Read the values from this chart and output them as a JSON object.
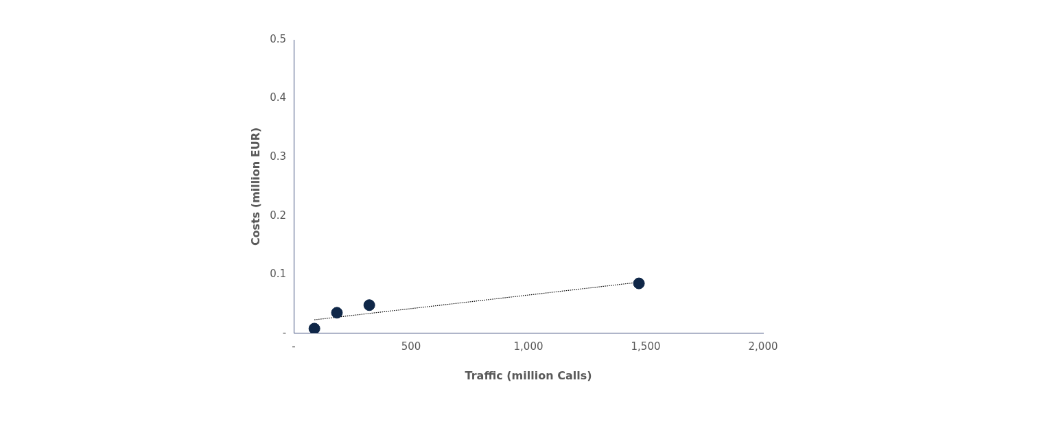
{
  "chart_data": {
    "type": "scatter",
    "xlabel": "Traffic (million Calls)",
    "ylabel": "Costs (million EUR)",
    "xlim": [
      0,
      2000
    ],
    "xticks": [
      {
        "value": 0,
        "label": "-"
      },
      {
        "value": 500,
        "label": "500"
      },
      {
        "value": 1000,
        "label": "1,000"
      },
      {
        "value": 1500,
        "label": "1,500"
      },
      {
        "value": 2000,
        "label": "2,000"
      }
    ],
    "ylim": [
      0,
      0.5
    ],
    "yticks": [
      {
        "value": 0,
        "label": "-"
      },
      0.1,
      0.2,
      0.3,
      0.4,
      0.5
    ],
    "grid": false,
    "legend": false,
    "series": [
      {
        "type": "scatter",
        "color": "#0f2748",
        "marker": "circle",
        "x": [
          88,
          184,
          322,
          1471
        ],
        "values": [
          0.008,
          0.035,
          0.048,
          0.085
        ]
      },
      {
        "type": "line",
        "color": "#000000",
        "line_style": "dotted",
        "marker": "none",
        "x": [
          88,
          1471
        ],
        "values": [
          0.023,
          0.087
        ]
      }
    ]
  }
}
